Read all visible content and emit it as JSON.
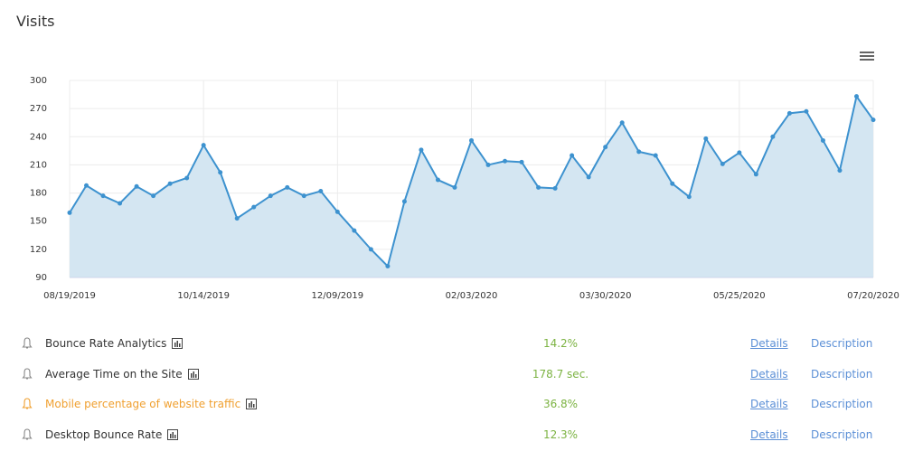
{
  "chart_data": {
    "type": "area",
    "title": "Visits",
    "categories": [
      "08/19/2019",
      null,
      null,
      null,
      null,
      null,
      null,
      null,
      "10/14/2019",
      null,
      null,
      null,
      null,
      null,
      null,
      null,
      "12/09/2019",
      null,
      null,
      null,
      null,
      null,
      null,
      null,
      "02/03/2020",
      null,
      null,
      null,
      null,
      null,
      null,
      null,
      "03/30/2020",
      null,
      null,
      null,
      null,
      null,
      null,
      null,
      "05/25/2020",
      null,
      null,
      null,
      null,
      null,
      null,
      null,
      "07/20/2020"
    ],
    "values": [
      159,
      188,
      177,
      169,
      187,
      177,
      190,
      196,
      231,
      202,
      153,
      165,
      177,
      186,
      177,
      182,
      160,
      140,
      120,
      102,
      171,
      226,
      194,
      186,
      236,
      210,
      214,
      213,
      186,
      185,
      220,
      197,
      229,
      255,
      224,
      220,
      190,
      176,
      238,
      211,
      223,
      200,
      240,
      265,
      267,
      236,
      204,
      283,
      258
    ],
    "color": "#3d92cf",
    "fill": "#d4e6f2",
    "ylim": [
      90,
      300
    ],
    "yticks": [
      90,
      120,
      150,
      180,
      210,
      240,
      270,
      300
    ],
    "grid": true
  },
  "metrics": {
    "rows": [
      {
        "name": "Bounce Rate Analytics",
        "value": "14.2%",
        "details": "Details",
        "description": "Description"
      },
      {
        "name": "Average Time on the Site",
        "value": "178.7 sec.",
        "details": "Details",
        "description": "Description"
      },
      {
        "name": "Mobile percentage of website traffic",
        "value": "36.8%",
        "details": "Details",
        "description": "Description"
      },
      {
        "name": "Desktop Bounce Rate",
        "value": "12.3%",
        "details": "Details",
        "description": "Description"
      }
    ]
  }
}
